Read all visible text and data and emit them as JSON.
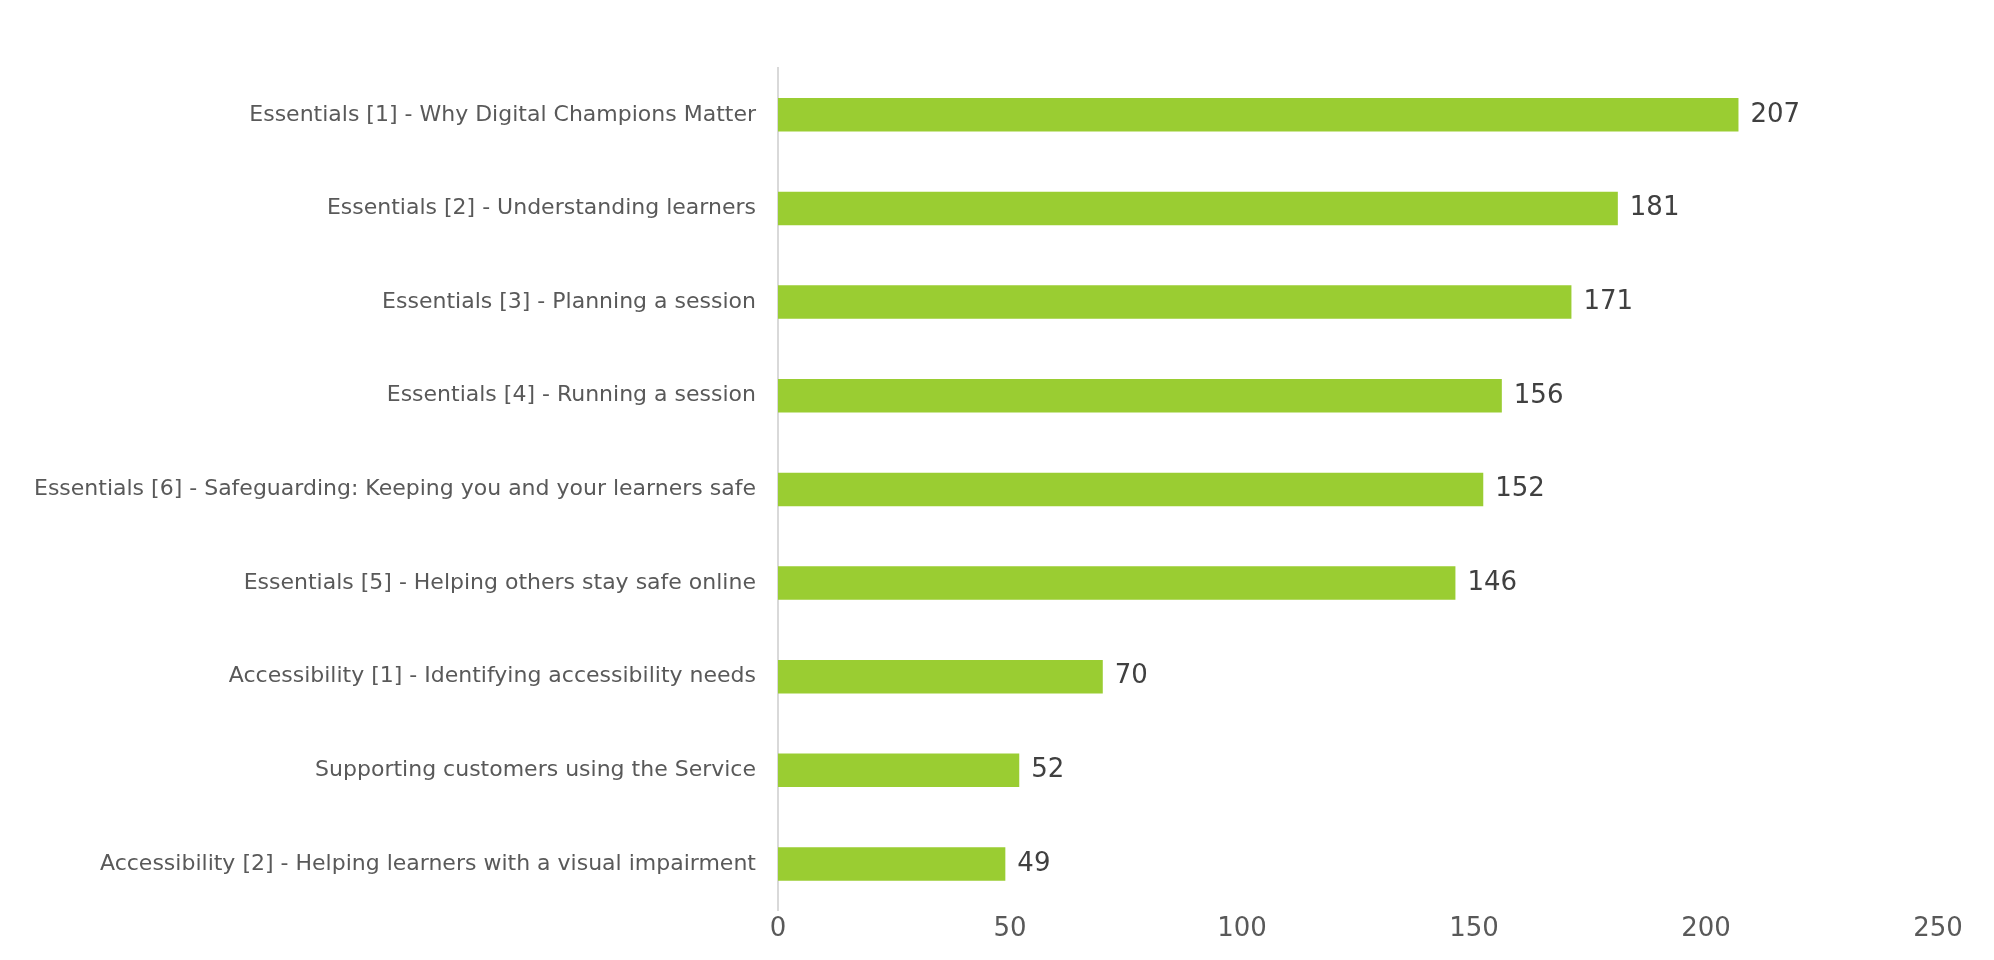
{
  "chart_data": {
    "type": "bar",
    "orientation": "horizontal",
    "categories": [
      "Essentials [1] - Why Digital Champions Matter",
      "Essentials [2] - Understanding learners",
      "Essentials [3] - Planning a session",
      "Essentials [4] - Running a session",
      "Essentials [6] - Safeguarding: Keeping you and your learners safe",
      "Essentials [5] - Helping others stay safe online",
      "Accessibility [1] - Identifying accessibility needs",
      "Supporting customers using the Service",
      "Accessibility [2] - Helping learners with a visual impairment"
    ],
    "values": [
      207,
      181,
      171,
      156,
      152,
      146,
      70,
      52,
      49
    ],
    "color": "#9acd32",
    "xlim": [
      0,
      250
    ],
    "xticks": [
      0,
      50,
      100,
      150,
      200,
      250
    ],
    "grid": false,
    "legend": false,
    "data_labels": true
  }
}
